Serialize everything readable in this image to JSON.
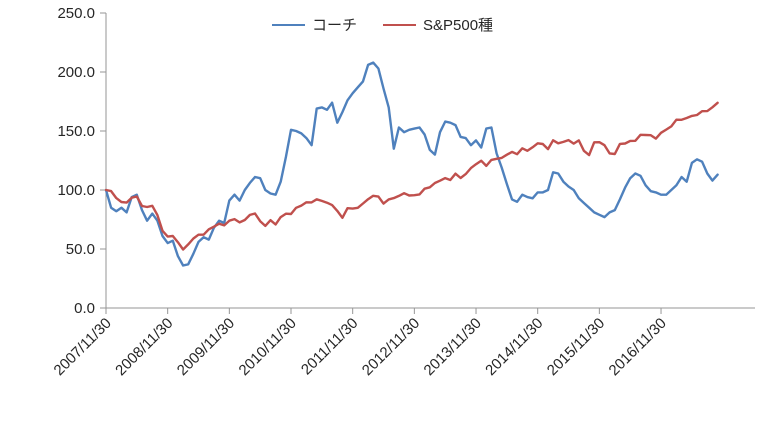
{
  "chart_data": {
    "type": "line",
    "title": "",
    "xlabel": "",
    "ylabel": "",
    "ylim": [
      0,
      250
    ],
    "grid": false,
    "legend_position": "top-center",
    "y_tick_labels": [
      "0.0",
      "50.0",
      "100.0",
      "150.0",
      "200.0",
      "250.0"
    ],
    "y_tick_values": [
      0,
      50,
      100,
      150,
      200,
      250
    ],
    "x_tick_labels": [
      "2007/11/30",
      "2008/11/30",
      "2009/11/30",
      "2010/11/30",
      "2011/11/30",
      "2012/11/30",
      "2013/11/30",
      "2014/11/30",
      "2015/11/30",
      "2016/11/30"
    ],
    "x_unit": "month",
    "x_start_label": "2007/11/30",
    "months_per_tick": 12,
    "series": [
      {
        "name": "コーチ",
        "color": "#4F81BD",
        "values": [
          100,
          85,
          82,
          85,
          81,
          94,
          96,
          83,
          74,
          80,
          74,
          61,
          55,
          57,
          44,
          36,
          37,
          46,
          56,
          60,
          58,
          68,
          74,
          72,
          91,
          96,
          91,
          100,
          106,
          111,
          110,
          100,
          97,
          96,
          107,
          128,
          151,
          150,
          148,
          144,
          138,
          169,
          170,
          168,
          174,
          157,
          166,
          176,
          182,
          187,
          192,
          206,
          208,
          203,
          186,
          170,
          135,
          153,
          149,
          151,
          152,
          153,
          147,
          134,
          130,
          149,
          158,
          157,
          155,
          145,
          144,
          138,
          142,
          136,
          152,
          153,
          131,
          119,
          105,
          92,
          90,
          96,
          94,
          93,
          98,
          98,
          100,
          115,
          114,
          107,
          103,
          100,
          93,
          89,
          85,
          81,
          79,
          77,
          81,
          83,
          92,
          102,
          110,
          114,
          112,
          104,
          99,
          98,
          96,
          96,
          100,
          104,
          111,
          107,
          123,
          126,
          124,
          114,
          108,
          113
        ]
      },
      {
        "name": "S&P500種",
        "color": "#C0504D",
        "values": [
          100,
          99.1,
          93.1,
          89.8,
          89.3,
          93.5,
          94.5,
          86.4,
          85.6,
          86.6,
          78.7,
          65.4,
          60.5,
          61.0,
          55.8,
          49.6,
          53.9,
          58.9,
          62.1,
          62.1,
          66.7,
          68.9,
          71.4,
          70.0,
          74.0,
          75.3,
          72.5,
          74.6,
          78.9,
          80.1,
          73.6,
          69.6,
          74.4,
          70.8,
          77.0,
          79.9,
          79.7,
          84.9,
          86.8,
          89.6,
          89.5,
          92.1,
          90.8,
          89.2,
          87.2,
          82.3,
          76.4,
          84.6,
          84.2,
          84.9,
          88.6,
          92.2,
          95.1,
          94.4,
          88.5,
          92.0,
          93.1,
          95.0,
          97.3,
          95.3,
          95.6,
          96.3,
          101.1,
          102.3,
          105.9,
          107.9,
          110.1,
          108.5,
          113.8,
          110.2,
          113.5,
          118.6,
          121.9,
          124.8,
          120.4,
          125.5,
          126.4,
          127.2,
          129.9,
          132.3,
          130.3,
          135.3,
          133.2,
          136.2,
          139.6,
          139.0,
          134.7,
          142.1,
          139.6,
          140.8,
          142.3,
          139.3,
          142.0,
          133.2,
          129.6,
          140.4,
          140.5,
          138.0,
          131.0,
          130.5,
          139.1,
          139.4,
          141.6,
          141.7,
          146.8,
          146.6,
          146.4,
          143.6,
          148.5,
          151.2,
          153.9,
          159.6,
          159.5,
          161.0,
          162.8,
          163.6,
          166.8,
          166.9,
          170.1,
          173.9
        ]
      }
    ]
  },
  "colors": {
    "axis": "#969696",
    "text": "#262626",
    "background": "#FFFFFF"
  }
}
